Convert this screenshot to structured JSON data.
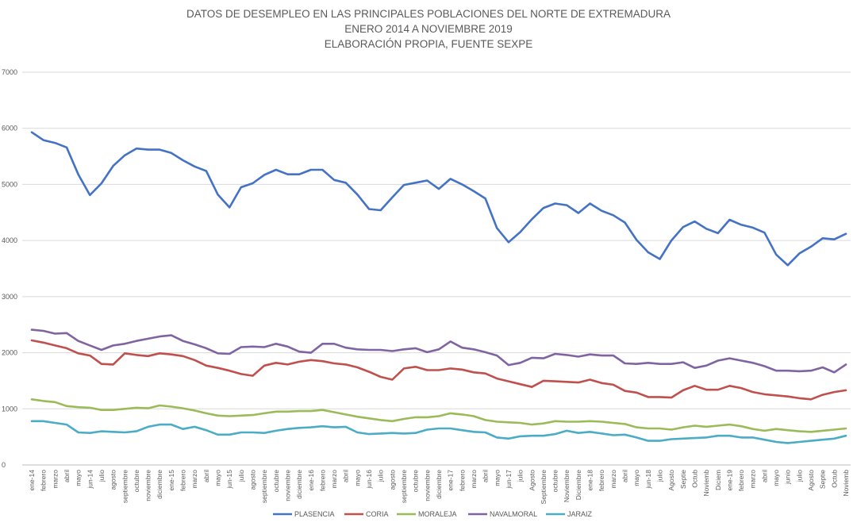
{
  "chart_data": {
    "type": "line",
    "title": "DATOS DE DESEMPLEO EN LAS PRINCIPALES POBLACIONES DEL NORTE DE EXTREMADURA",
    "subtitle": "ENERO 2014 A  NOVIEMBRE 2019",
    "source": "ELABORACIÓN PROPIA, FUENTE SEXPE",
    "xlabel": "",
    "ylabel": "",
    "ylim": [
      0,
      7000
    ],
    "yticks": [
      0,
      1000,
      2000,
      3000,
      4000,
      5000,
      6000,
      7000
    ],
    "grid": true,
    "legend_position": "bottom",
    "categories": [
      "ene-14",
      "febrero",
      "marzo",
      "abril",
      "mayo",
      "jun-14",
      "julio",
      "agosto",
      "septiembre",
      "octubre",
      "noviembre",
      "diciembre",
      "ene-15",
      "febrero",
      "marzo",
      "abril",
      "mayo",
      "jun-15",
      "julio",
      "agosto",
      "septiembre",
      "octubre",
      "noviembre",
      "diciembre",
      "ene-16",
      "febrero",
      "marzo",
      "abril",
      "mayo",
      "jun-16",
      "julio",
      "agosto",
      "septiembre",
      "octubre",
      "noviembre",
      "diciembre",
      "ene-17",
      "febrero",
      "marzo",
      "abril",
      "mayo",
      "jun-17",
      "julio",
      "Agosto",
      "Septiembre",
      "octubre",
      "Noviembre",
      "Diciembre",
      "ene-18",
      "febrero",
      "marzo",
      "abril",
      "mayo",
      "jun-18",
      "julio",
      "Agosto",
      "Septie",
      "Octub",
      "Noviemb",
      "Diciem",
      "ene-19",
      "febrero",
      "marzo",
      "abril",
      "mayo",
      "junio",
      "julio",
      "Agosto",
      "Septie",
      "Octub",
      "Noviemb"
    ],
    "series": [
      {
        "name": "PLASENCIA",
        "color": "#4472C4",
        "values": [
          5930,
          5790,
          5740,
          5660,
          5180,
          4810,
          5020,
          5330,
          5520,
          5640,
          5620,
          5620,
          5560,
          5430,
          5320,
          5240,
          4820,
          4590,
          4950,
          5020,
          5170,
          5260,
          5180,
          5180,
          5260,
          5260,
          5080,
          5030,
          4820,
          4560,
          4540,
          4770,
          4990,
          5030,
          5070,
          4920,
          5100,
          5000,
          4880,
          4750,
          4220,
          3970,
          4150,
          4380,
          4580,
          4660,
          4630,
          4490,
          4660,
          4530,
          4450,
          4320,
          4010,
          3790,
          3670,
          4000,
          4240,
          4340,
          4210,
          4130,
          4370,
          4280,
          4230,
          4140,
          3750,
          3560,
          3770,
          3890,
          4040,
          4020,
          4120
        ]
      },
      {
        "name": "CORIA",
        "color": "#C0504D",
        "values": [
          2220,
          2180,
          2130,
          2080,
          1990,
          1950,
          1800,
          1790,
          1990,
          1960,
          1940,
          1990,
          1970,
          1940,
          1870,
          1770,
          1730,
          1680,
          1620,
          1590,
          1770,
          1820,
          1790,
          1840,
          1870,
          1850,
          1810,
          1790,
          1740,
          1660,
          1570,
          1520,
          1720,
          1750,
          1690,
          1690,
          1720,
          1700,
          1650,
          1630,
          1540,
          1490,
          1440,
          1390,
          1500,
          1490,
          1480,
          1470,
          1520,
          1460,
          1430,
          1320,
          1290,
          1210,
          1210,
          1200,
          1330,
          1410,
          1340,
          1340,
          1410,
          1370,
          1300,
          1260,
          1240,
          1220,
          1190,
          1170,
          1250,
          1300,
          1330
        ]
      },
      {
        "name": "MORALEJA",
        "color": "#9BBB59",
        "values": [
          1170,
          1140,
          1120,
          1050,
          1030,
          1020,
          980,
          980,
          1000,
          1020,
          1010,
          1060,
          1040,
          1010,
          970,
          920,
          880,
          870,
          880,
          890,
          920,
          950,
          950,
          960,
          960,
          980,
          940,
          900,
          860,
          830,
          800,
          780,
          820,
          850,
          850,
          870,
          920,
          900,
          870,
          800,
          770,
          760,
          750,
          720,
          740,
          780,
          770,
          770,
          780,
          770,
          750,
          730,
          670,
          650,
          650,
          630,
          670,
          700,
          680,
          700,
          720,
          690,
          640,
          610,
          640,
          620,
          600,
          590,
          610,
          630,
          650
        ]
      },
      {
        "name": "NAVALMORAL",
        "color": "#8064A2",
        "values": [
          2410,
          2390,
          2340,
          2350,
          2210,
          2130,
          2050,
          2130,
          2160,
          2210,
          2250,
          2290,
          2310,
          2210,
          2150,
          2080,
          1990,
          1980,
          2100,
          2110,
          2100,
          2160,
          2110,
          2020,
          2000,
          2160,
          2160,
          2090,
          2060,
          2050,
          2050,
          2030,
          2060,
          2080,
          2010,
          2060,
          2200,
          2090,
          2060,
          2010,
          1950,
          1780,
          1820,
          1910,
          1900,
          1980,
          1960,
          1930,
          1970,
          1950,
          1950,
          1810,
          1800,
          1820,
          1800,
          1800,
          1830,
          1730,
          1770,
          1860,
          1900,
          1860,
          1820,
          1760,
          1680,
          1680,
          1670,
          1680,
          1740,
          1650,
          1790
        ]
      },
      {
        "name": "JARAIZ",
        "color": "#4BACC6",
        "values": [
          780,
          780,
          750,
          720,
          580,
          570,
          600,
          590,
          580,
          600,
          680,
          720,
          720,
          640,
          680,
          620,
          540,
          540,
          580,
          580,
          570,
          610,
          640,
          660,
          670,
          690,
          670,
          680,
          580,
          550,
          560,
          570,
          560,
          570,
          630,
          650,
          650,
          620,
          590,
          580,
          490,
          470,
          510,
          520,
          520,
          550,
          610,
          570,
          590,
          560,
          530,
          540,
          490,
          430,
          430,
          460,
          470,
          480,
          490,
          520,
          520,
          490,
          490,
          450,
          410,
          390,
          410,
          430,
          450,
          470,
          520
        ]
      }
    ]
  }
}
